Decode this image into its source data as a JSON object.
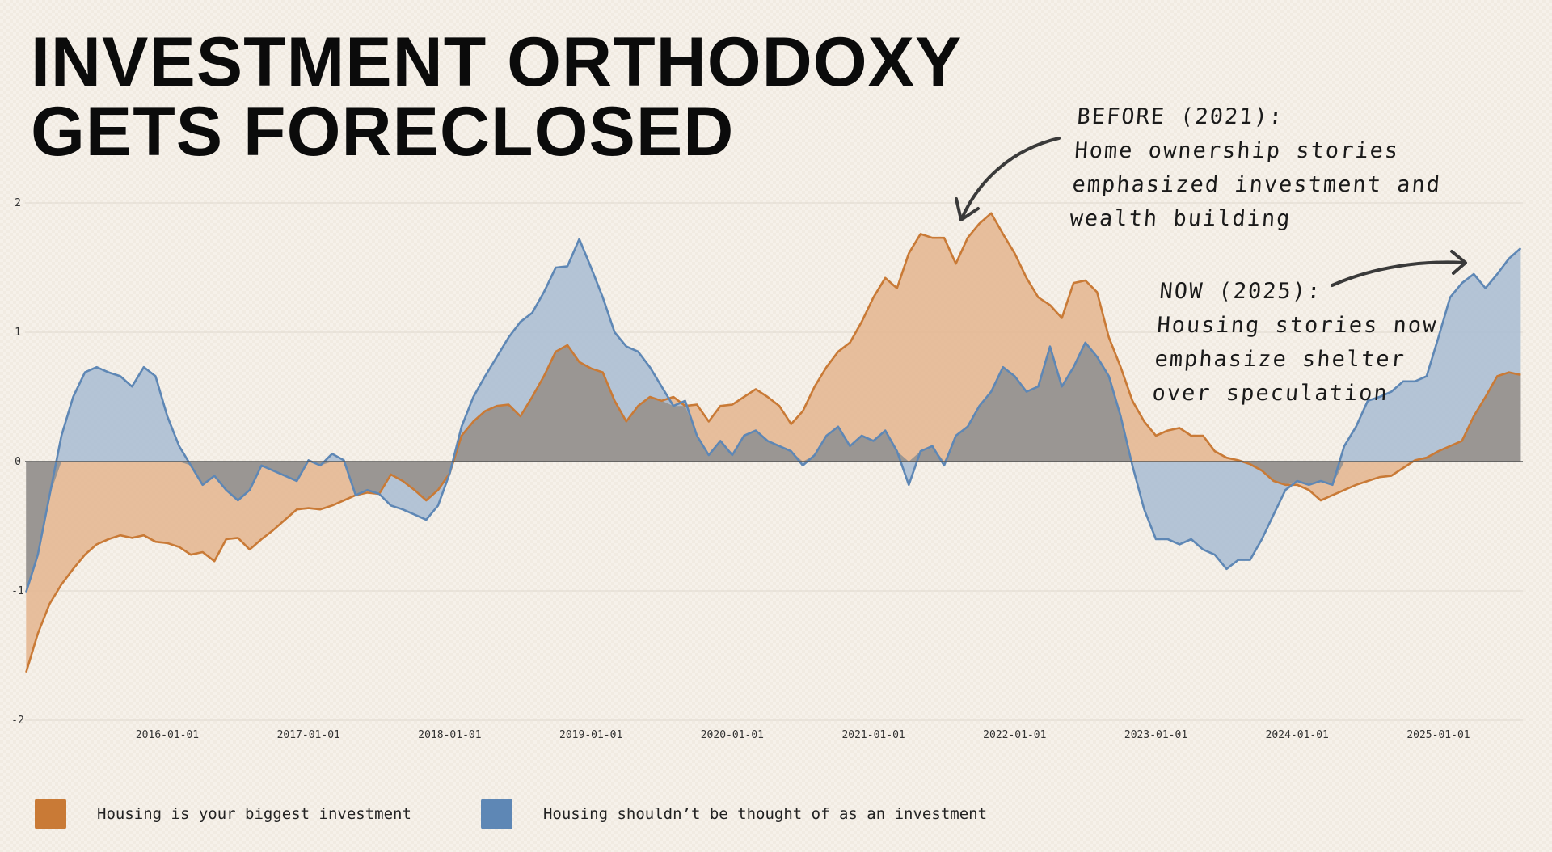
{
  "title": {
    "line1": "INVESTMENT ORTHODOXY",
    "line2": "GETS FORECLOSED"
  },
  "annotations": {
    "before": {
      "heading": "BEFORE (2021):",
      "body": "Home ownership stories\nemphasized investment and\nwealth building"
    },
    "now": {
      "heading": "NOW (2025):",
      "body": "Housing stories now\nemphasize shelter\nover speculation"
    }
  },
  "legend": [
    {
      "label": "Housing is your biggest investment",
      "color": "#c97a36"
    },
    {
      "label": "Housing shouldn’t be thought of as an investment",
      "color": "#5e87b5"
    }
  ],
  "chart_data": {
    "type": "area",
    "title": "INVESTMENT ORTHODOXY GETS FORECLOSED",
    "xlabel": "",
    "ylabel": "",
    "ylim": [
      -2,
      2
    ],
    "yticks": [
      "2",
      "1",
      "0",
      "-1",
      "-2"
    ],
    "xticks": [
      "2016-01-01",
      "2017-01-01",
      "2018-01-01",
      "2019-01-01",
      "2020-01-01",
      "2021-01-01",
      "2022-01-01",
      "2023-01-01",
      "2024-01-01",
      "2025-01-01"
    ],
    "grid": "horizontal",
    "legend_position": "bottom-left",
    "overlap_color": "#9a9693",
    "x": [
      "2015-01",
      "2015-02",
      "2015-03",
      "2015-04",
      "2015-05",
      "2015-06",
      "2015-07",
      "2015-08",
      "2015-09",
      "2015-10",
      "2015-11",
      "2015-12",
      "2016-01",
      "2016-02",
      "2016-03",
      "2016-04",
      "2016-05",
      "2016-06",
      "2016-07",
      "2016-08",
      "2016-09",
      "2016-10",
      "2016-11",
      "2016-12",
      "2017-01",
      "2017-02",
      "2017-03",
      "2017-04",
      "2017-05",
      "2017-06",
      "2017-07",
      "2017-08",
      "2017-09",
      "2017-10",
      "2017-11",
      "2017-12",
      "2018-01",
      "2018-02",
      "2018-03",
      "2018-04",
      "2018-05",
      "2018-06",
      "2018-07",
      "2018-08",
      "2018-09",
      "2018-10",
      "2018-11",
      "2018-12",
      "2019-01",
      "2019-02",
      "2019-03",
      "2019-04",
      "2019-05",
      "2019-06",
      "2019-07",
      "2019-08",
      "2019-09",
      "2019-10",
      "2019-11",
      "2019-12",
      "2020-01",
      "2020-02",
      "2020-03",
      "2020-04",
      "2020-05",
      "2020-06",
      "2020-07",
      "2020-08",
      "2020-09",
      "2020-10",
      "2020-11",
      "2020-12",
      "2021-01",
      "2021-02",
      "2021-03",
      "2021-04",
      "2021-05",
      "2021-06",
      "2021-07",
      "2021-08",
      "2021-09",
      "2021-10",
      "2021-11",
      "2021-12",
      "2022-01",
      "2022-02",
      "2022-03",
      "2022-04",
      "2022-05",
      "2022-06",
      "2022-07",
      "2022-08",
      "2022-09",
      "2022-10",
      "2022-11",
      "2022-12",
      "2023-01",
      "2023-02",
      "2023-03",
      "2023-04",
      "2023-05",
      "2023-06",
      "2023-07",
      "2023-08",
      "2023-09",
      "2023-10",
      "2023-11",
      "2023-12",
      "2024-01",
      "2024-02",
      "2024-03",
      "2024-04",
      "2024-05",
      "2024-06",
      "2024-07",
      "2024-08",
      "2024-09",
      "2024-10",
      "2024-11",
      "2024-12",
      "2025-01",
      "2025-02",
      "2025-03",
      "2025-04",
      "2025-05",
      "2025-06",
      "2025-07",
      "2025-08"
    ],
    "series": [
      {
        "name": "Housing is your biggest investment",
        "color": "#c97a36",
        "values": [
          -1.63,
          -1.33,
          -1.1,
          -0.95,
          -0.83,
          -0.72,
          -0.64,
          -0.6,
          -0.57,
          -0.59,
          -0.57,
          -0.62,
          -0.63,
          -0.66,
          -0.72,
          -0.7,
          -0.77,
          -0.6,
          -0.59,
          -0.68,
          -0.6,
          -0.53,
          -0.45,
          -0.37,
          -0.36,
          -0.37,
          -0.34,
          -0.3,
          -0.26,
          -0.24,
          -0.25,
          -0.1,
          -0.15,
          -0.22,
          -0.3,
          -0.22,
          -0.09,
          0.2,
          0.31,
          0.39,
          0.43,
          0.44,
          0.35,
          0.5,
          0.66,
          0.85,
          0.9,
          0.77,
          0.72,
          0.69,
          0.47,
          0.31,
          0.43,
          0.5,
          0.47,
          0.5,
          0.43,
          0.44,
          0.31,
          0.43,
          0.44,
          0.5,
          0.56,
          0.5,
          0.43,
          0.29,
          0.39,
          0.58,
          0.73,
          0.85,
          0.92,
          1.08,
          1.27,
          1.42,
          1.34,
          1.61,
          1.76,
          1.73,
          1.73,
          1.53,
          1.73,
          1.84,
          1.92,
          1.76,
          1.61,
          1.42,
          1.27,
          1.21,
          1.11,
          1.38,
          1.4,
          1.31,
          0.96,
          0.73,
          0.47,
          0.31,
          0.2,
          0.24,
          0.26,
          0.2,
          0.2,
          0.08,
          0.03,
          0.01,
          -0.02,
          -0.07,
          -0.15,
          -0.18,
          -0.18,
          -0.22,
          -0.3,
          -0.26,
          -0.22,
          -0.18,
          -0.15,
          -0.12,
          -0.11,
          -0.05,
          0.01,
          0.03,
          0.08,
          0.12,
          0.16,
          0.35,
          0.5,
          0.66,
          0.69,
          0.67
        ]
      },
      {
        "name": "Housing shouldn’t be thought of as an investment",
        "color": "#5e87b5",
        "values": [
          -1.01,
          -0.72,
          -0.26,
          0.2,
          0.5,
          0.69,
          0.73,
          0.69,
          0.66,
          0.58,
          0.73,
          0.66,
          0.35,
          0.12,
          -0.03,
          -0.18,
          -0.11,
          -0.22,
          -0.3,
          -0.22,
          -0.03,
          -0.07,
          -0.11,
          -0.15,
          0.01,
          -0.03,
          0.06,
          0.01,
          -0.26,
          -0.22,
          -0.25,
          -0.34,
          -0.37,
          -0.41,
          -0.45,
          -0.34,
          -0.09,
          0.27,
          0.5,
          0.66,
          0.81,
          0.96,
          1.08,
          1.15,
          1.31,
          1.5,
          1.51,
          1.72,
          1.5,
          1.27,
          1.0,
          0.89,
          0.85,
          0.73,
          0.58,
          0.43,
          0.47,
          0.2,
          0.05,
          0.16,
          0.05,
          0.2,
          0.24,
          0.16,
          0.12,
          0.08,
          -0.03,
          0.05,
          0.2,
          0.27,
          0.12,
          0.2,
          0.16,
          0.24,
          0.08,
          -0.18,
          0.08,
          0.12,
          -0.03,
          0.2,
          0.27,
          0.43,
          0.54,
          0.73,
          0.66,
          0.54,
          0.58,
          0.89,
          0.58,
          0.73,
          0.92,
          0.81,
          0.66,
          0.35,
          -0.03,
          -0.37,
          -0.6,
          -0.6,
          -0.64,
          -0.6,
          -0.68,
          -0.72,
          -0.83,
          -0.76,
          -0.76,
          -0.6,
          -0.41,
          -0.22,
          -0.15,
          -0.18,
          -0.15,
          -0.18,
          0.12,
          0.27,
          0.47,
          0.5,
          0.54,
          0.62,
          0.62,
          0.66,
          0.96,
          1.27,
          1.38,
          1.45,
          1.34,
          1.45,
          1.57,
          1.65
        ]
      }
    ]
  }
}
